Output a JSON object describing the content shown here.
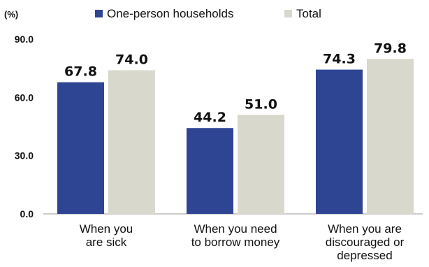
{
  "chart_data": {
    "type": "bar",
    "y_unit": "(%)",
    "categories": [
      [
        "When you",
        "are sick"
      ],
      [
        "When you need",
        "to borrow money"
      ],
      [
        "When you are",
        "discouraged or",
        "depressed"
      ]
    ],
    "series": [
      {
        "name": "One-person households",
        "values": [
          67.8,
          44.2,
          74.3
        ],
        "color": "#2e4594"
      },
      {
        "name": "Total",
        "values": [
          74.0,
          51.0,
          79.8
        ],
        "color": "#d8d8cc"
      }
    ],
    "yticks": [
      "0.0",
      "30.0",
      "60.0",
      "90.0"
    ],
    "ylim": [
      0,
      90
    ],
    "grid": false,
    "legend_position": "top"
  }
}
